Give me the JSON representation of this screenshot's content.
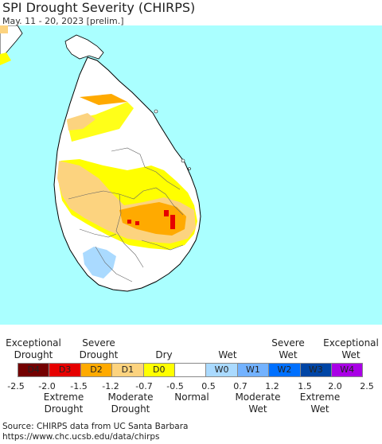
{
  "header": {
    "title": "SPI Drought Severity (CHIRPS)",
    "subtitle": "May. 11 - 20, 2023 [prelim.]"
  },
  "legend": {
    "top_labels": [
      {
        "id": "exceptional-drought",
        "text": [
          "Exceptional",
          "Drought"
        ]
      },
      {
        "id": "severe-drought",
        "text": [
          "Severe",
          "Drought"
        ]
      },
      {
        "id": "dry",
        "text": [
          "Dry"
        ]
      },
      {
        "id": "wet",
        "text": [
          "Wet"
        ]
      },
      {
        "id": "severe-wet",
        "text": [
          "Severe",
          "Wet"
        ]
      },
      {
        "id": "exceptional-wet",
        "text": [
          "Exceptional",
          "Wet"
        ]
      }
    ],
    "categories": [
      {
        "code": "D4",
        "color": "#730000"
      },
      {
        "code": "D3",
        "color": "#e60000"
      },
      {
        "code": "D2",
        "color": "#ffaa00"
      },
      {
        "code": "D1",
        "color": "#fcd37f"
      },
      {
        "code": "D0",
        "color": "#ffff00"
      },
      {
        "code": "",
        "color": "#ffffff"
      },
      {
        "code": "W0",
        "color": "#aadaff"
      },
      {
        "code": "W1",
        "color": "#73b2ff"
      },
      {
        "code": "W2",
        "color": "#0070ff"
      },
      {
        "code": "W3",
        "color": "#0045a5"
      },
      {
        "code": "W4",
        "color": "#a900e6"
      }
    ],
    "ticks": [
      "-2.5",
      "-2.0",
      "-1.5",
      "-1.2",
      "-0.7",
      "-0.5",
      "0.5",
      "0.7",
      "1.2",
      "1.5",
      "2.0",
      "2.5"
    ],
    "bottom_labels": [
      {
        "id": "extreme-drought",
        "text": [
          "Extreme",
          "Drought"
        ]
      },
      {
        "id": "moderate-drought",
        "text": [
          "Moderate",
          "Drought"
        ]
      },
      {
        "id": "normal",
        "text": [
          "Normal"
        ]
      },
      {
        "id": "moderate-wet",
        "text": [
          "Moderate",
          "Wet"
        ]
      },
      {
        "id": "extreme-wet",
        "text": [
          "Extreme",
          "Wet"
        ]
      }
    ]
  },
  "source": {
    "line1": "Source: CHIRPS data from UC Santa Barbara",
    "line2": "https://www.chc.ucsb.edu/data/chirps"
  },
  "colors": {
    "ocean": "#aaffff",
    "land": "#ffffff",
    "border": "#000000"
  }
}
